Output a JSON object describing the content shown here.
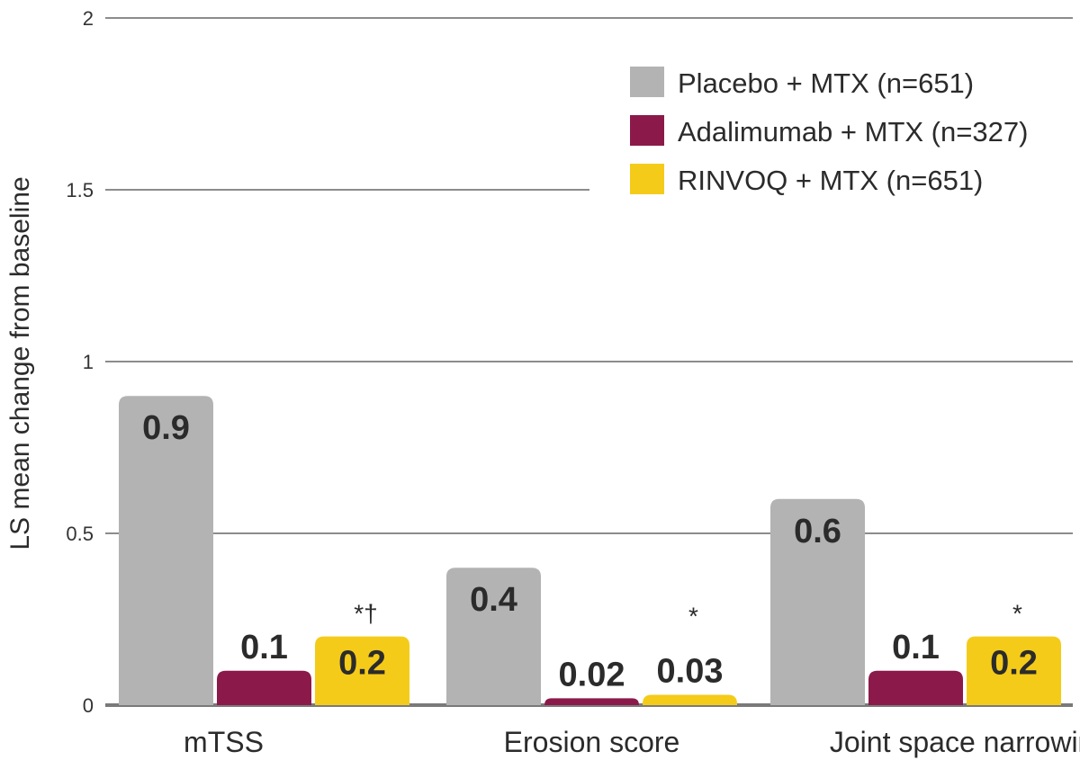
{
  "chart_data": {
    "type": "bar",
    "ylabel": "LS mean change from baseline",
    "ylim": [
      0,
      2
    ],
    "yticks": [
      0,
      0.5,
      1,
      1.5,
      2
    ],
    "ytick_labels": [
      "0",
      "0.5",
      "1",
      "1.5",
      "2"
    ],
    "grid": true,
    "legend_position": "top-right",
    "categories": [
      "mTSS",
      "Erosion score",
      "Joint space narrowing"
    ],
    "series": [
      {
        "name": "Placebo + MTX (n=651)",
        "color": "#b3b3b3",
        "values": [
          0.9,
          0.4,
          0.6
        ],
        "labels": [
          "0.9",
          "0.4",
          "0.6"
        ]
      },
      {
        "name": "Adalimumab + MTX (n=327)",
        "color": "#8b1a4a",
        "values": [
          0.1,
          0.02,
          0.1
        ],
        "labels": [
          "0.1",
          "0.02",
          "0.1"
        ]
      },
      {
        "name": "RINVOQ + MTX (n=651)",
        "color": "#f5cb1a",
        "values": [
          0.2,
          0.03,
          0.2
        ],
        "labels": [
          "0.2",
          "0.03",
          "0.2"
        ]
      }
    ],
    "annotations": [
      {
        "category_index": 0,
        "series_index": 2,
        "text": "*†"
      },
      {
        "category_index": 1,
        "series_index": 2,
        "text": "*"
      },
      {
        "category_index": 2,
        "series_index": 2,
        "text": "*"
      }
    ]
  }
}
